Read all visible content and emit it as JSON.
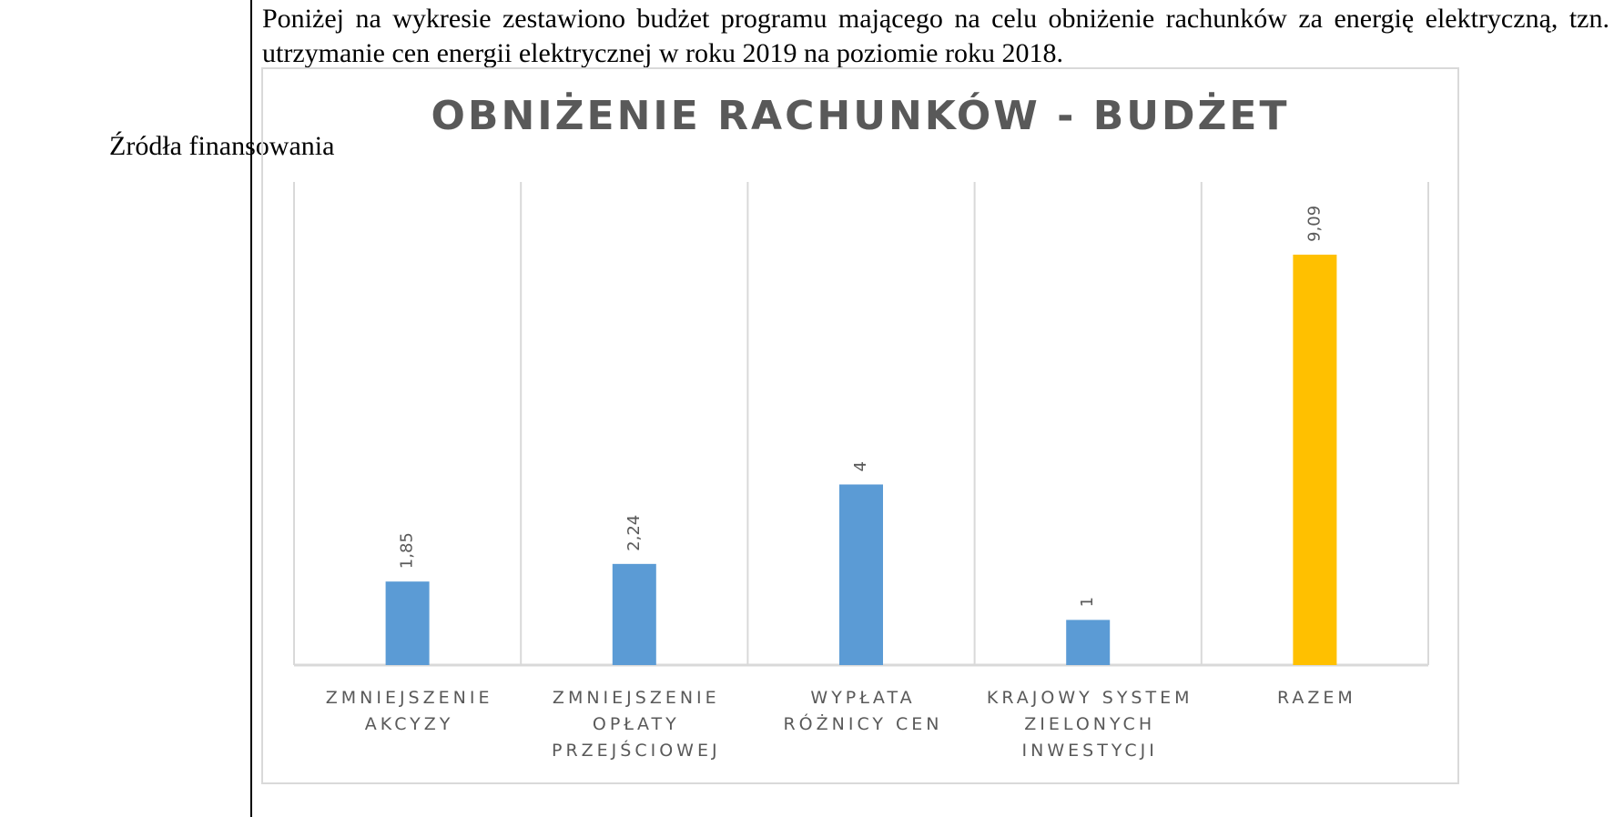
{
  "intro_text": "Poniżej na wykresie zestawiono budżet programu mającego na celu obniżenie rachunków za energię elektryczną, tzn. utrzymanie cen energii elektrycznej w roku 2019 na poziomie roku 2018.",
  "side_label": "Źródła finansowania",
  "colors": {
    "bar": "#5b9bd5",
    "total_bar": "#ffc000",
    "grid": "#d9d9d9",
    "text": "#595959"
  },
  "chart_data": {
    "type": "bar",
    "title": "OBNIŻENIE RACHUNKÓW - BUDŻET",
    "xlabel": "",
    "ylabel": "",
    "ylim": [
      0,
      10
    ],
    "grid": true,
    "categories": [
      [
        "ZMNIEJSZENIE",
        "AKCYZY"
      ],
      [
        "ZMNIEJSZENIE",
        "OPŁATY",
        "PRZEJŚCIOWEJ"
      ],
      [
        "WYPŁATA",
        "RÓŻNICY CEN"
      ],
      [
        "KRAJOWY SYSTEM",
        "ZIELONYCH",
        "INWESTYCJI"
      ],
      [
        "RAZEM"
      ]
    ],
    "values": [
      1.85,
      2.24,
      4,
      1,
      9.09
    ],
    "data_labels": [
      "1,85",
      "2,24",
      "4",
      "1",
      "9,09"
    ]
  }
}
